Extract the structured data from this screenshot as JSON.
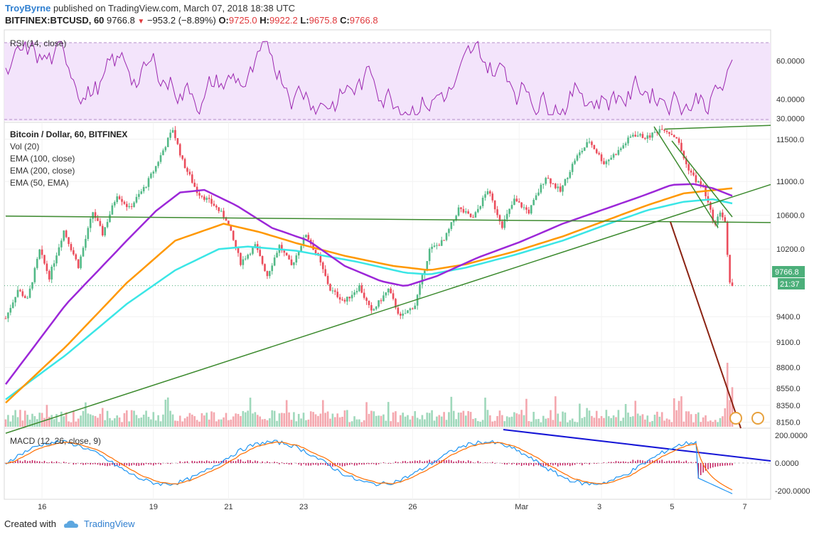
{
  "header": {
    "author": "TroyByrne",
    "published": "published on TradingView.com, March 07, 2018 18:38 UTC",
    "symbol": "BITFINEX:BTCUSD, 60",
    "last": "9766.8",
    "change": "−953.2 (−8.89%)",
    "open_label": "O:",
    "open": "9725.0",
    "high_label": "H:",
    "high": "9922.2",
    "low_label": "L:",
    "low": "9675.8",
    "close_label": "C:",
    "close": "9766.8"
  },
  "legend": {
    "title": "Bitcoin / Dollar, 60, BITFINEX",
    "vol": "Vol (20)",
    "ema100": "EMA (100, close)",
    "ema200": "EMA (200, close)",
    "ema50": "EMA (50, EMA)"
  },
  "price_badge": "9766.8",
  "time_badge": "21:37",
  "footer": {
    "created": "Created with",
    "brand": "TradingView"
  },
  "colors": {
    "up": "#53b987",
    "down": "#eb4d5c",
    "ema50": "#9c27d8",
    "ema100": "#ff9800",
    "ema200": "#3ae6e6",
    "trend": "#3c8a2e",
    "rsi": "#9c27b0",
    "rsi_bg": "#f3e4fb",
    "macd": "#2196f3",
    "signal": "#ff6d00",
    "blue_trend": "#1515d6",
    "brown_line": "#8b2313"
  },
  "chart_data": {
    "type": "candlestick",
    "instrument": "BITFINEX:BTCUSD",
    "interval": "60",
    "x_ticks": [
      "16",
      "19",
      "21",
      "23",
      "26",
      "Mar",
      "3",
      "5",
      "7"
    ],
    "price_axis": {
      "ticks": [
        8150.0,
        8350.0,
        8550.0,
        8800.0,
        9100.0,
        9400.0,
        9766.8,
        10200.0,
        10600.0,
        11000.0,
        11500.0
      ],
      "labels": [
        "8150.0",
        "8350.0",
        "8550.0",
        "8800.0",
        "9100.0",
        "9400.0",
        "10200.0",
        "10600.0",
        "11000.0",
        "11500.0"
      ],
      "ylim": [
        8080,
        11700
      ]
    },
    "rsi": {
      "label": "RSI (14, close)",
      "ticks": [
        "60.0000",
        "40.0000",
        "30.0000"
      ],
      "tick_values": [
        60,
        40,
        30
      ],
      "band": [
        30,
        70
      ],
      "ylim": [
        28,
        76
      ]
    },
    "macd": {
      "label": "MACD (12, 26, close, 9)",
      "ticks": [
        "200.0000",
        "0.0000",
        "-200.0000"
      ],
      "tick_values": [
        200,
        0,
        -200
      ],
      "ylim": [
        -260,
        250
      ]
    },
    "price_path": [
      [
        0,
        9380
      ],
      [
        5,
        9720
      ],
      [
        9,
        9600
      ],
      [
        14,
        10180
      ],
      [
        18,
        9870
      ],
      [
        24,
        10420
      ],
      [
        30,
        10000
      ],
      [
        36,
        10640
      ],
      [
        40,
        10380
      ],
      [
        46,
        10850
      ],
      [
        51,
        10680
      ],
      [
        58,
        10960
      ],
      [
        62,
        11180
      ],
      [
        69,
        11620
      ],
      [
        73,
        11240
      ],
      [
        79,
        10880
      ],
      [
        86,
        10720
      ],
      [
        91,
        10560
      ],
      [
        97,
        10040
      ],
      [
        103,
        10240
      ],
      [
        108,
        9890
      ],
      [
        113,
        10240
      ],
      [
        118,
        10000
      ],
      [
        124,
        10380
      ],
      [
        129,
        10100
      ],
      [
        134,
        9720
      ],
      [
        140,
        9580
      ],
      [
        146,
        9760
      ],
      [
        151,
        9450
      ],
      [
        158,
        9720
      ],
      [
        163,
        9390
      ],
      [
        169,
        9540
      ],
      [
        175,
        10190
      ],
      [
        181,
        10300
      ],
      [
        187,
        10680
      ],
      [
        193,
        10560
      ],
      [
        199,
        10900
      ],
      [
        205,
        10480
      ],
      [
        210,
        10780
      ],
      [
        216,
        10640
      ],
      [
        223,
        11060
      ],
      [
        229,
        10880
      ],
      [
        235,
        11260
      ],
      [
        241,
        11480
      ],
      [
        247,
        11220
      ],
      [
        253,
        11360
      ],
      [
        259,
        11560
      ],
      [
        265,
        11520
      ],
      [
        271,
        11640
      ],
      [
        277,
        11520
      ],
      [
        281,
        11200
      ],
      [
        285,
        11010
      ],
      [
        288,
        10940
      ],
      [
        291,
        10640
      ],
      [
        293,
        10480
      ],
      [
        295,
        10650
      ],
      [
        297,
        10520
      ],
      [
        299,
        9800
      ],
      [
        300,
        9766.8
      ]
    ],
    "ema50": [
      [
        0,
        8600
      ],
      [
        25,
        9550
      ],
      [
        50,
        10300
      ],
      [
        62,
        10650
      ],
      [
        72,
        10870
      ],
      [
        82,
        10900
      ],
      [
        95,
        10720
      ],
      [
        110,
        10450
      ],
      [
        125,
        10300
      ],
      [
        140,
        10000
      ],
      [
        155,
        9820
      ],
      [
        165,
        9760
      ],
      [
        178,
        9880
      ],
      [
        195,
        10100
      ],
      [
        212,
        10280
      ],
      [
        230,
        10500
      ],
      [
        245,
        10650
      ],
      [
        262,
        10820
      ],
      [
        275,
        10960
      ],
      [
        284,
        10970
      ],
      [
        292,
        10920
      ],
      [
        300,
        10830
      ]
    ],
    "ema100": [
      [
        0,
        8380
      ],
      [
        25,
        9050
      ],
      [
        50,
        9800
      ],
      [
        70,
        10300
      ],
      [
        90,
        10500
      ],
      [
        105,
        10400
      ],
      [
        120,
        10270
      ],
      [
        140,
        10120
      ],
      [
        160,
        10000
      ],
      [
        175,
        9950
      ],
      [
        190,
        10020
      ],
      [
        210,
        10170
      ],
      [
        230,
        10350
      ],
      [
        248,
        10540
      ],
      [
        265,
        10720
      ],
      [
        280,
        10860
      ],
      [
        300,
        10920
      ]
    ],
    "ema200": [
      [
        0,
        8420
      ],
      [
        25,
        8950
      ],
      [
        50,
        9550
      ],
      [
        70,
        9950
      ],
      [
        88,
        10200
      ],
      [
        100,
        10230
      ],
      [
        120,
        10180
      ],
      [
        145,
        10050
      ],
      [
        165,
        9920
      ],
      [
        175,
        9900
      ],
      [
        190,
        9980
      ],
      [
        210,
        10130
      ],
      [
        230,
        10300
      ],
      [
        250,
        10510
      ],
      [
        265,
        10660
      ],
      [
        280,
        10760
      ],
      [
        292,
        10790
      ],
      [
        300,
        10740
      ]
    ],
    "trendlines": [
      {
        "from": [
          0,
          10590
        ],
        "to": [
          300,
          10430
        ]
      },
      {
        "from": [
          0,
          8020
        ],
        "to": [
          300,
          10880
        ]
      },
      {
        "from": [
          272,
          11620
        ],
        "to": [
          300,
          11580
        ]
      }
    ],
    "volume_note": "volume bars in lower band of price pane",
    "rsi_path_hint": "oscillating between ~30 and ~70, drops to 30 at end",
    "macd_hint": "MACD and signal oscillating, falling to about -220 at end"
  }
}
